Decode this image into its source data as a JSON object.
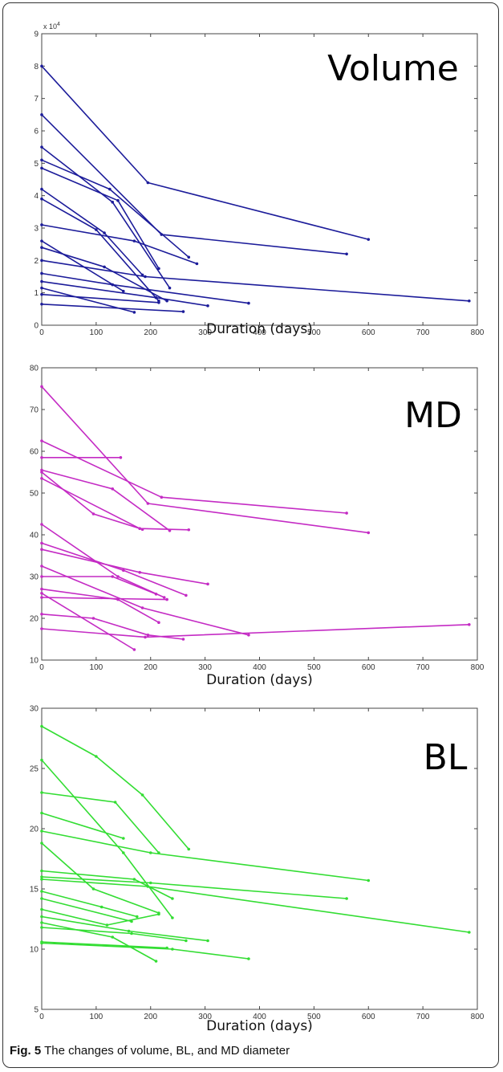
{
  "caption": {
    "label": "Fig. 5",
    "text": "The changes of volume, BL, and MD diameter"
  },
  "chart_data": [
    {
      "type": "line",
      "title": "Volume",
      "xlabel": "Duration (days)",
      "ylabel": "",
      "exponent_label": "x 10^4",
      "exponent_base": "x 10",
      "exponent_power": "4",
      "xlim": [
        0,
        800
      ],
      "ylim": [
        0,
        9
      ],
      "xticks": [
        0,
        100,
        200,
        300,
        400,
        500,
        600,
        700,
        800
      ],
      "yticks": [
        0,
        1,
        2,
        3,
        4,
        5,
        6,
        7,
        8,
        9
      ],
      "color": "#1c1c9a",
      "series": [
        {
          "x": [
            0,
            195,
            600
          ],
          "y": [
            8.0,
            4.4,
            2.65
          ]
        },
        {
          "x": [
            0,
            220,
            560
          ],
          "y": [
            6.5,
            2.8,
            2.2
          ]
        },
        {
          "x": [
            0,
            130,
            235
          ],
          "y": [
            5.5,
            3.8,
            1.15
          ]
        },
        {
          "x": [
            0,
            125,
            270
          ],
          "y": [
            5.1,
            4.2,
            2.1
          ]
        },
        {
          "x": [
            0,
            140,
            215
          ],
          "y": [
            4.85,
            3.85,
            1.75
          ]
        },
        {
          "x": [
            0,
            115,
            185
          ],
          "y": [
            4.2,
            2.85,
            1.55
          ]
        },
        {
          "x": [
            0,
            100,
            215
          ],
          "y": [
            3.9,
            2.95,
            0.75
          ]
        },
        {
          "x": [
            0,
            170,
            285
          ],
          "y": [
            3.1,
            2.6,
            1.9
          ]
        },
        {
          "x": [
            0,
            150
          ],
          "y": [
            2.6,
            1.05
          ]
        },
        {
          "x": [
            0,
            115,
            230
          ],
          "y": [
            2.4,
            1.8,
            0.75
          ]
        },
        {
          "x": [
            0,
            190,
            785
          ],
          "y": [
            2.0,
            1.5,
            0.75
          ]
        },
        {
          "x": [
            0,
            130,
            380
          ],
          "y": [
            1.6,
            1.25,
            0.68
          ]
        },
        {
          "x": [
            0,
            210,
            305
          ],
          "y": [
            1.35,
            0.85,
            0.6
          ]
        },
        {
          "x": [
            0,
            170
          ],
          "y": [
            1.15,
            0.4
          ]
        },
        {
          "x": [
            0,
            215
          ],
          "y": [
            0.95,
            0.7
          ]
        },
        {
          "x": [
            0,
            260
          ],
          "y": [
            0.65,
            0.42
          ]
        }
      ]
    },
    {
      "type": "line",
      "title": "MD",
      "xlabel": "Duration (days)",
      "ylabel": "",
      "xlim": [
        0,
        800
      ],
      "ylim": [
        10,
        80
      ],
      "xticks": [
        0,
        100,
        200,
        300,
        400,
        500,
        600,
        700,
        800
      ],
      "yticks": [
        10,
        20,
        30,
        40,
        50,
        60,
        70,
        80
      ],
      "color": "#c42bc4",
      "series": [
        {
          "x": [
            0,
            195,
            600
          ],
          "y": [
            75.5,
            47.5,
            40.5
          ]
        },
        {
          "x": [
            0,
            220,
            560
          ],
          "y": [
            62.5,
            49.0,
            45.2
          ]
        },
        {
          "x": [
            0,
            145
          ],
          "y": [
            58.5,
            58.5
          ]
        },
        {
          "x": [
            0,
            130,
            235
          ],
          "y": [
            55.5,
            51.0,
            41.0
          ]
        },
        {
          "x": [
            0,
            180,
            270
          ],
          "y": [
            53.5,
            41.5,
            41.2
          ]
        },
        {
          "x": [
            0,
            95,
            185
          ],
          "y": [
            55.0,
            45.0,
            41.3
          ]
        },
        {
          "x": [
            0,
            140,
            225
          ],
          "y": [
            42.5,
            30.0,
            25.0
          ]
        },
        {
          "x": [
            0,
            180,
            305
          ],
          "y": [
            36.5,
            31.0,
            28.2
          ]
        },
        {
          "x": [
            0,
            150,
            265
          ],
          "y": [
            38.0,
            31.5,
            25.5
          ]
        },
        {
          "x": [
            0,
            130,
            210
          ],
          "y": [
            30.0,
            30.0,
            25.8
          ]
        },
        {
          "x": [
            0,
            185,
            380
          ],
          "y": [
            32.5,
            22.5,
            16.0
          ]
        },
        {
          "x": [
            0,
            230
          ],
          "y": [
            25.0,
            24.5
          ]
        },
        {
          "x": [
            0,
            140,
            215
          ],
          "y": [
            27.0,
            24.5,
            19.0
          ]
        },
        {
          "x": [
            0,
            95,
            195,
            260
          ],
          "y": [
            21.0,
            20.0,
            16.0,
            15.0
          ]
        },
        {
          "x": [
            0,
            190,
            785
          ],
          "y": [
            17.5,
            15.5,
            18.5
          ]
        },
        {
          "x": [
            0,
            170
          ],
          "y": [
            26.0,
            12.5
          ]
        }
      ]
    },
    {
      "type": "line",
      "title": "BL",
      "xlabel": "Duration (days)",
      "ylabel": "",
      "xlim": [
        0,
        800
      ],
      "ylim": [
        5,
        30
      ],
      "xticks": [
        0,
        100,
        200,
        300,
        400,
        500,
        600,
        700,
        800
      ],
      "yticks": [
        5,
        10,
        15,
        20,
        25,
        30
      ],
      "color": "#33dd33",
      "series": [
        {
          "x": [
            0,
            100,
            185,
            270
          ],
          "y": [
            28.5,
            26.0,
            22.8,
            18.3
          ]
        },
        {
          "x": [
            0,
            150,
            240
          ],
          "y": [
            25.7,
            18.0,
            12.6
          ]
        },
        {
          "x": [
            0,
            135,
            215
          ],
          "y": [
            23.0,
            22.2,
            18.0
          ]
        },
        {
          "x": [
            0,
            150
          ],
          "y": [
            21.3,
            19.2
          ]
        },
        {
          "x": [
            0,
            200,
            600
          ],
          "y": [
            19.8,
            18.0,
            15.7
          ]
        },
        {
          "x": [
            0,
            95,
            215
          ],
          "y": [
            18.8,
            15.0,
            13.0
          ]
        },
        {
          "x": [
            0,
            170,
            240
          ],
          "y": [
            16.5,
            15.8,
            14.2
          ]
        },
        {
          "x": [
            0,
            200,
            560
          ],
          "y": [
            16.0,
            15.5,
            14.2
          ]
        },
        {
          "x": [
            0,
            195,
            785
          ],
          "y": [
            15.8,
            15.2,
            11.4
          ]
        },
        {
          "x": [
            0,
            110,
            175
          ],
          "y": [
            14.8,
            13.5,
            12.7
          ]
        },
        {
          "x": [
            0,
            165
          ],
          "y": [
            14.2,
            12.3
          ]
        },
        {
          "x": [
            0,
            120,
            215
          ],
          "y": [
            13.3,
            12.0,
            12.9
          ]
        },
        {
          "x": [
            0,
            160,
            305
          ],
          "y": [
            12.7,
            11.5,
            10.7
          ]
        },
        {
          "x": [
            0,
            165,
            265
          ],
          "y": [
            11.8,
            11.3,
            10.7
          ]
        },
        {
          "x": [
            0,
            130,
            210
          ],
          "y": [
            12.2,
            11.0,
            9.0
          ]
        },
        {
          "x": [
            0,
            240,
            380
          ],
          "y": [
            10.5,
            10.0,
            9.2
          ]
        },
        {
          "x": [
            0,
            230
          ],
          "y": [
            10.6,
            10.1
          ]
        }
      ]
    }
  ]
}
